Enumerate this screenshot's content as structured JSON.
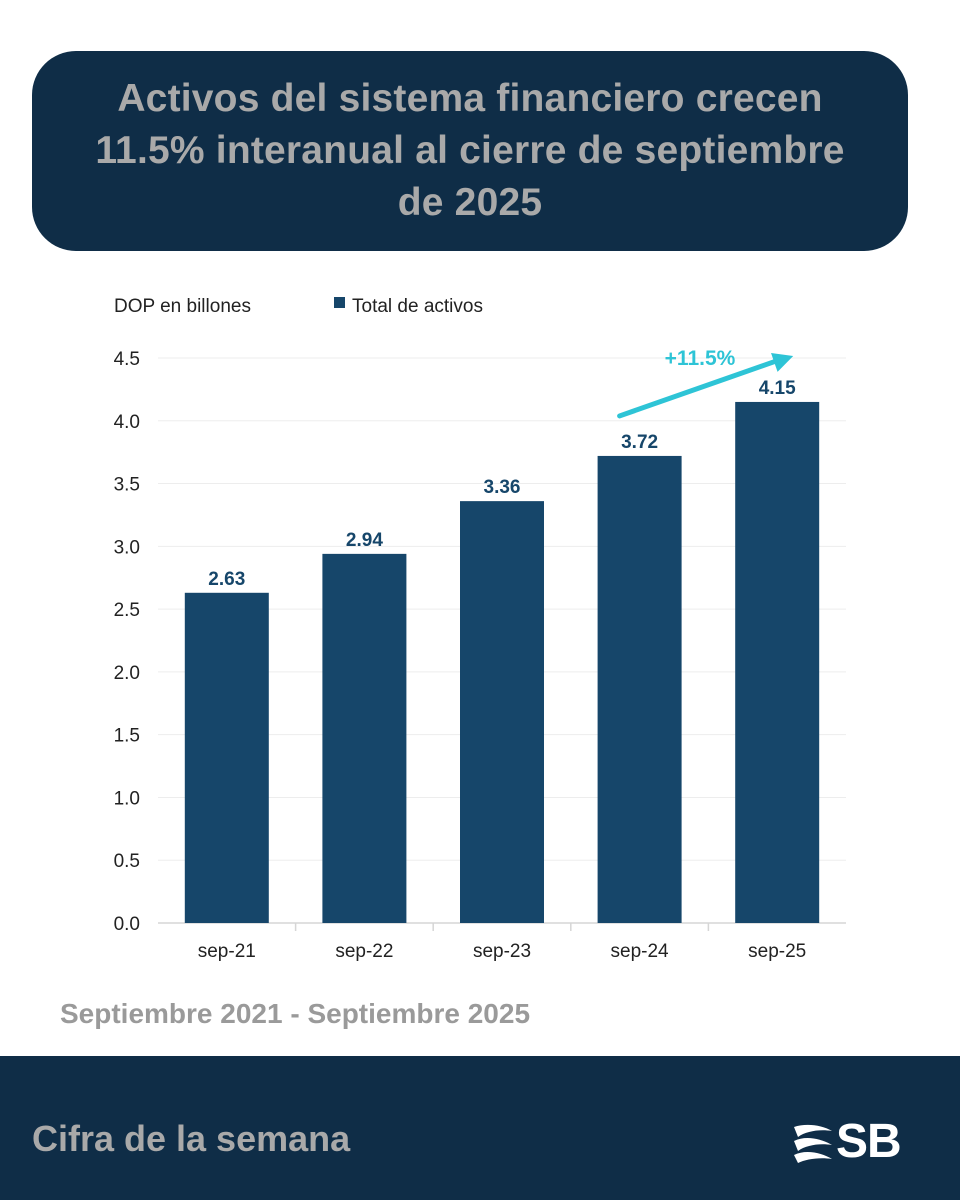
{
  "header": {
    "title": "Activos del sistema financiero crecen 11.5% interanual al cierre de septiembre de 2025"
  },
  "chart_data": {
    "type": "bar",
    "unit_label": "DOP en billones",
    "categories": [
      "sep-21",
      "sep-22",
      "sep-23",
      "sep-24",
      "sep-25"
    ],
    "series": [
      {
        "name": "Total de activos",
        "values": [
          2.63,
          2.94,
          3.36,
          3.72,
          4.15
        ],
        "color": "#16466a"
      }
    ],
    "data_labels": [
      "2.63",
      "2.94",
      "3.36",
      "3.72",
      "4.15"
    ],
    "y_ticks": [
      "0.0",
      "0.5",
      "1.0",
      "1.5",
      "2.0",
      "2.5",
      "3.0",
      "3.5",
      "4.0",
      "4.5"
    ],
    "ylim": [
      0,
      4.5
    ],
    "grid": true,
    "legend_position": "top",
    "annotation": {
      "text": "+11.5%",
      "from": "sep-24",
      "to": "sep-25",
      "color": "#2ec4d6"
    }
  },
  "period": "Septiembre 2021 -  Septiembre 2025",
  "footer": {
    "label": "Cifra de la semana",
    "logo_text": "SB"
  },
  "colors": {
    "navy": "#0f2d47",
    "bar": "#16466a",
    "accent": "#2ec4d6",
    "muted_text": "#a9a9a9"
  }
}
